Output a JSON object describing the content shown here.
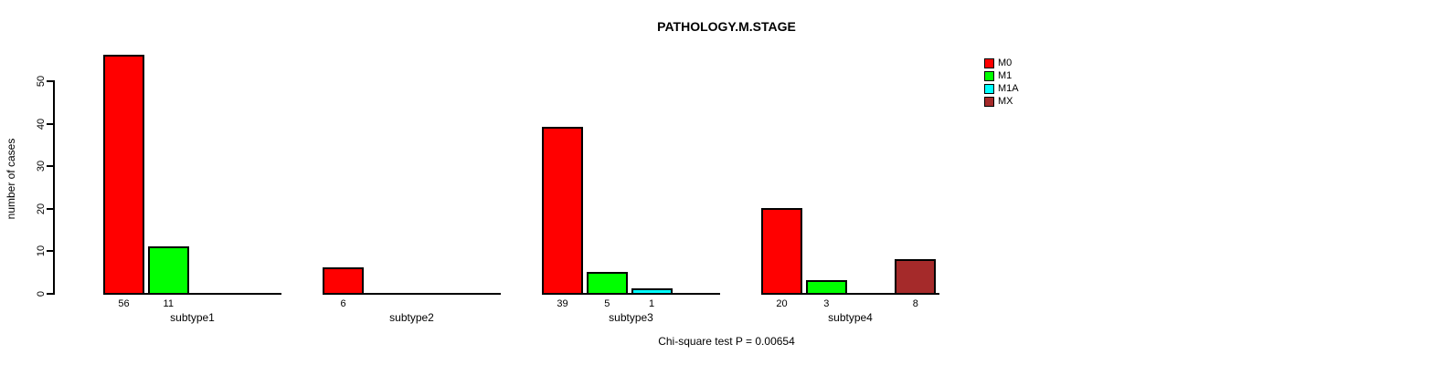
{
  "chart_data": {
    "type": "bar",
    "title": "PATHOLOGY.M.STAGE",
    "ylabel": "number of cases",
    "annotation": "Chi-square test P = 0.00654",
    "categories": [
      "subtype1",
      "subtype2",
      "subtype3",
      "subtype4"
    ],
    "series": [
      {
        "name": "M0",
        "color": "#ff0000",
        "values": [
          56,
          6,
          39,
          20
        ]
      },
      {
        "name": "M1",
        "color": "#00ff00",
        "values": [
          11,
          0,
          5,
          3
        ]
      },
      {
        "name": "M1A",
        "color": "#00ffff",
        "values": [
          0,
          0,
          1,
          0
        ]
      },
      {
        "name": "MX",
        "color": "#a52a2a",
        "values": [
          0,
          0,
          0,
          8
        ]
      }
    ],
    "yticks": [
      0,
      10,
      20,
      30,
      40,
      50
    ],
    "ylim": [
      0,
      50
    ],
    "bar_value_labels_shown_for_nonzero": true,
    "legend_position": "top-right",
    "grid": false
  }
}
